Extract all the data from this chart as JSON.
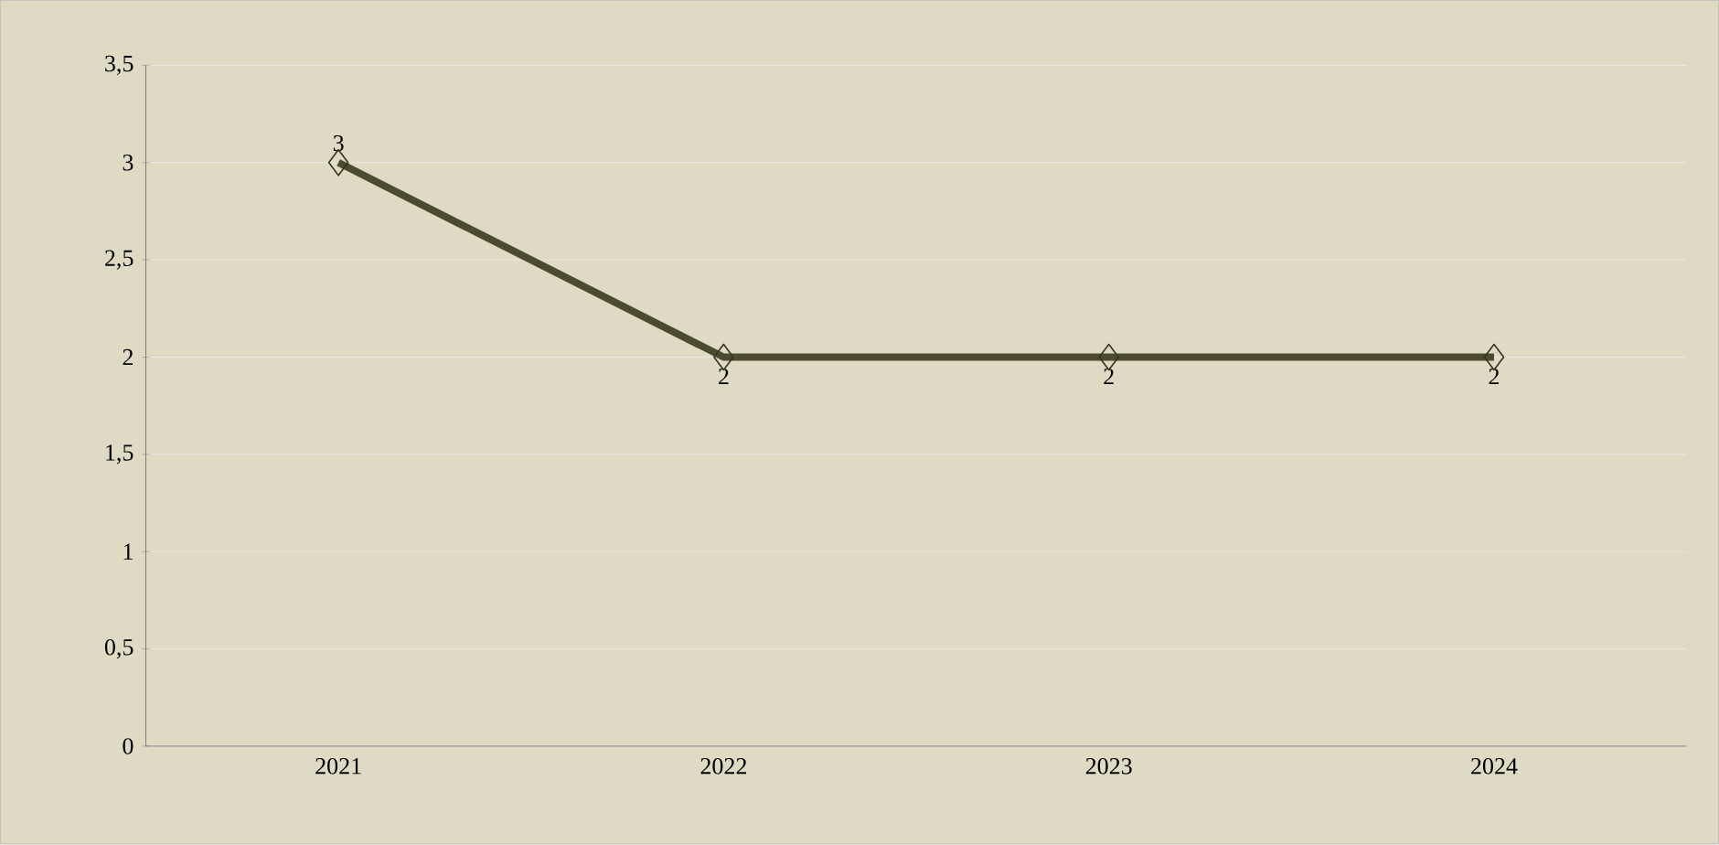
{
  "chart_data": {
    "type": "line",
    "categories": [
      "2021",
      "2022",
      "2023",
      "2024"
    ],
    "values": [
      3,
      2,
      2,
      2
    ],
    "color": "#4d4b2e",
    "marker": "diamond",
    "line_style": "solid",
    "data_labels": true,
    "grid": "y",
    "ylim": [
      0,
      3.5
    ],
    "yticks": [
      0,
      {
        "value": 0.5,
        "label": "0,5"
      },
      1,
      {
        "value": 1.5,
        "label": "1,5"
      },
      2,
      {
        "value": 2.5,
        "label": "2,5"
      },
      3,
      {
        "value": 3.5,
        "label": "3,5"
      }
    ]
  }
}
